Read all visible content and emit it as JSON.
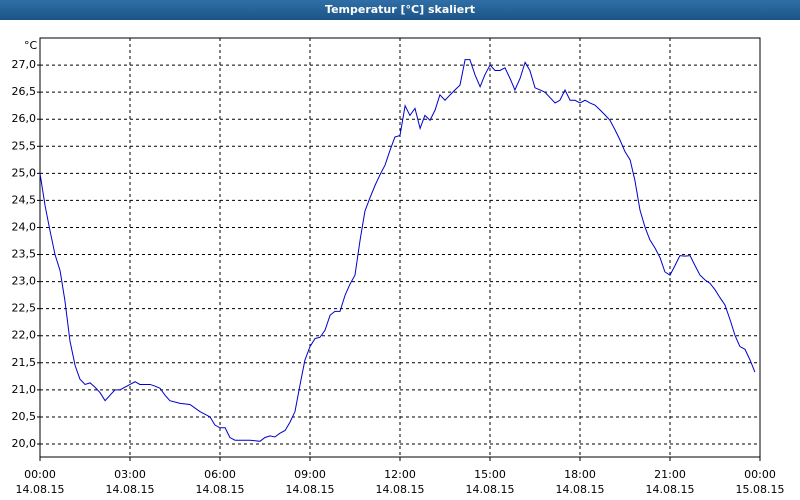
{
  "chart_data": {
    "type": "line",
    "title": "Temperatur [°C] skaliert",
    "y_label": "°C",
    "x": [
      0,
      0.17,
      0.33,
      0.5,
      0.67,
      0.83,
      1,
      1.17,
      1.33,
      1.5,
      1.67,
      1.83,
      2,
      2.17,
      2.33,
      2.5,
      2.67,
      2.83,
      3,
      3.17,
      3.33,
      3.5,
      3.67,
      3.83,
      4,
      4.17,
      4.33,
      4.67,
      5,
      5.33,
      5.67,
      5.83,
      6,
      6.17,
      6.33,
      6.5,
      6.67,
      7,
      7.33,
      7.5,
      7.67,
      7.83,
      8,
      8.17,
      8.33,
      8.5,
      8.67,
      8.83,
      9,
      9.17,
      9.33,
      9.5,
      9.67,
      9.83,
      10,
      10.17,
      10.33,
      10.5,
      10.67,
      10.83,
      11,
      11.17,
      11.33,
      11.5,
      11.67,
      11.83,
      12,
      12.17,
      12.33,
      12.5,
      12.67,
      12.83,
      13,
      13.17,
      13.33,
      13.5,
      13.67,
      13.83,
      14,
      14.17,
      14.33,
      14.5,
      14.67,
      14.83,
      15,
      15.17,
      15.33,
      15.5,
      15.67,
      15.83,
      16,
      16.17,
      16.33,
      16.5,
      16.67,
      16.83,
      17,
      17.17,
      17.33,
      17.5,
      17.67,
      17.83,
      18,
      18.17,
      18.33,
      18.5,
      18.67,
      18.83,
      19,
      19.17,
      19.33,
      19.5,
      19.67,
      19.83,
      20,
      20.17,
      20.33,
      20.5,
      20.67,
      20.83,
      21,
      21.17,
      21.33,
      21.5,
      21.67,
      21.83,
      22,
      22.17,
      22.33,
      22.5,
      22.67,
      22.83,
      23,
      23.17,
      23.33,
      23.5,
      23.67,
      23.83
    ],
    "series": [
      {
        "name": "Temperatur",
        "color": "#0000cc",
        "values": [
          25.0,
          24.4,
          23.95,
          23.5,
          23.2,
          22.65,
          21.9,
          21.45,
          21.2,
          21.1,
          21.13,
          21.05,
          20.95,
          20.8,
          20.9,
          21.0,
          21.0,
          21.05,
          21.1,
          21.15,
          21.1,
          21.1,
          21.1,
          21.07,
          21.03,
          20.9,
          20.8,
          20.75,
          20.73,
          20.6,
          20.5,
          20.35,
          20.3,
          20.3,
          20.12,
          20.07,
          20.07,
          20.07,
          20.05,
          20.12,
          20.15,
          20.13,
          20.2,
          20.25,
          20.4,
          20.6,
          21.1,
          21.55,
          21.8,
          21.95,
          21.97,
          22.1,
          22.38,
          22.45,
          22.45,
          22.75,
          22.95,
          23.12,
          23.77,
          24.3,
          24.55,
          24.78,
          24.97,
          25.15,
          25.43,
          25.67,
          25.7,
          26.25,
          26.07,
          26.2,
          25.83,
          26.07,
          25.98,
          26.17,
          26.45,
          26.35,
          26.45,
          26.54,
          26.63,
          27.1,
          27.1,
          26.82,
          26.6,
          26.82,
          27.0,
          26.9,
          26.9,
          26.95,
          26.75,
          26.54,
          26.75,
          27.05,
          26.9,
          26.58,
          26.54,
          26.5,
          26.4,
          26.3,
          26.35,
          26.54,
          26.35,
          26.35,
          26.3,
          26.35,
          26.3,
          26.26,
          26.17,
          26.08,
          25.98,
          25.8,
          25.62,
          25.4,
          25.25,
          24.87,
          24.32,
          24.0,
          23.77,
          23.62,
          23.44,
          23.18,
          23.12,
          23.3,
          23.48,
          23.47,
          23.48,
          23.3,
          23.12,
          23.03,
          22.97,
          22.85,
          22.7,
          22.57,
          22.3,
          22.0,
          21.8,
          21.75,
          21.55,
          21.33
        ]
      }
    ],
    "xlim": [
      0,
      24
    ],
    "xticks": [
      {
        "value": 0,
        "label": "00:00",
        "date": "14.08.15"
      },
      {
        "value": 3,
        "label": "03:00",
        "date": "14.08.15"
      },
      {
        "value": 6,
        "label": "06:00",
        "date": "14.08.15"
      },
      {
        "value": 9,
        "label": "09:00",
        "date": "14.08.15"
      },
      {
        "value": 12,
        "label": "12:00",
        "date": "14.08.15"
      },
      {
        "value": 15,
        "label": "15:00",
        "date": "14.08.15"
      },
      {
        "value": 18,
        "label": "18:00",
        "date": "14.08.15"
      },
      {
        "value": 21,
        "label": "21:00",
        "date": "14.08.15"
      },
      {
        "value": 24,
        "label": "00:00",
        "date": "15.08.15"
      }
    ],
    "ylim": [
      19.76,
      27.5
    ],
    "yticks": [
      {
        "value": 20,
        "label": "20,0"
      },
      {
        "value": 20.5,
        "label": "20,5"
      },
      {
        "value": 21,
        "label": "21,0"
      },
      {
        "value": 21.5,
        "label": "21,5"
      },
      {
        "value": 22,
        "label": "22,0"
      },
      {
        "value": 22.5,
        "label": "22,5"
      },
      {
        "value": 23,
        "label": "23,0"
      },
      {
        "value": 23.5,
        "label": "23,5"
      },
      {
        "value": 24,
        "label": "24,0"
      },
      {
        "value": 24.5,
        "label": "24,5"
      },
      {
        "value": 25,
        "label": "25,0"
      },
      {
        "value": 25.5,
        "label": "25,5"
      },
      {
        "value": 26,
        "label": "26,0"
      },
      {
        "value": 26.5,
        "label": "26,5"
      },
      {
        "value": 27,
        "label": "27,0"
      }
    ],
    "grid": true
  }
}
